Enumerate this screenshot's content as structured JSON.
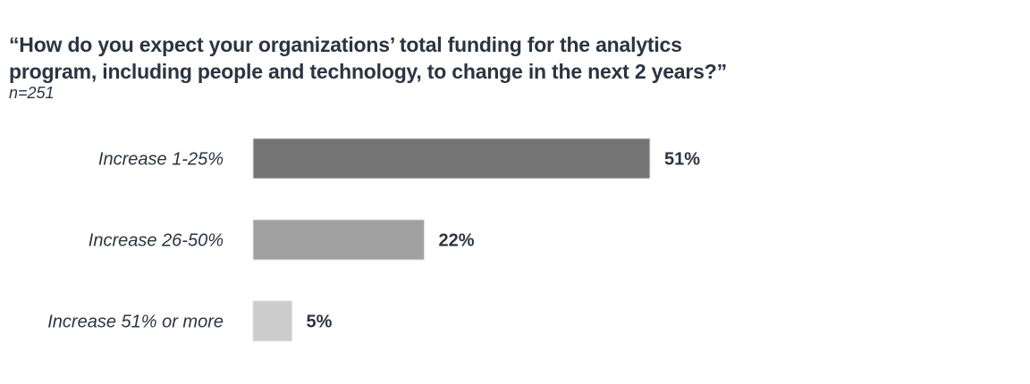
{
  "chart_data": {
    "type": "bar",
    "orientation": "horizontal",
    "title_lines": [
      "“How do you expect your organizations’ total funding for the analytics",
      "program, including people and technology, to change in the next 2 years?”"
    ],
    "subtitle": "n=251",
    "categories": [
      "Increase 1-25%",
      "Increase 26-50%",
      "Increase 51% or more"
    ],
    "values": [
      51,
      22,
      5
    ],
    "data_labels": [
      "51%",
      "22%",
      "5%"
    ],
    "colors": [
      "#757575",
      "#a0a0a0",
      "#cccccc"
    ],
    "xlim": [
      0,
      51
    ],
    "grid": false,
    "axes_visible": false
  }
}
